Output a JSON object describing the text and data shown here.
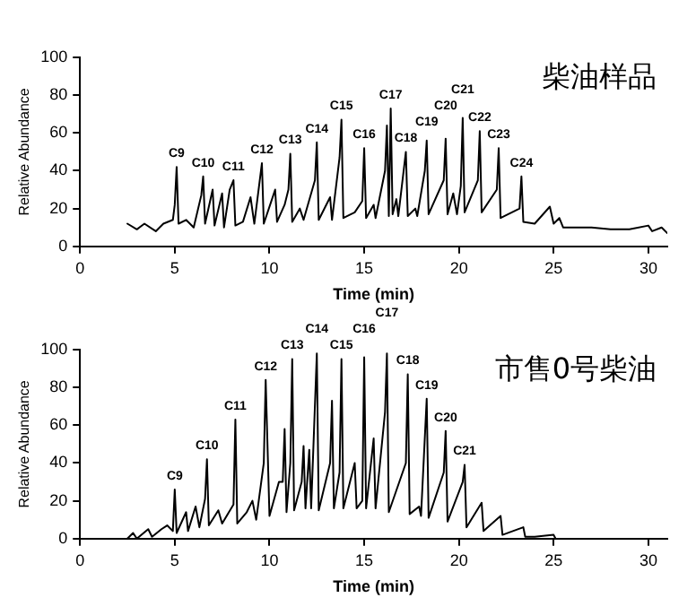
{
  "chart_data": [
    {
      "type": "line",
      "title": "柴油样品",
      "xlabel": "Time (min)",
      "ylabel": "Relative Abundance",
      "xlim": [
        0,
        31
      ],
      "xticks": [
        0,
        5,
        10,
        15,
        20,
        25,
        30
      ],
      "ylim": [
        0,
        100
      ],
      "yticks": [
        0,
        20,
        40,
        60,
        80,
        100
      ],
      "grid": false,
      "legend": false,
      "marker": "none",
      "series": [
        {
          "color": "#000000",
          "x": [
            2.5,
            3.0,
            3.4,
            4.0,
            4.4,
            4.9,
            5.0,
            5.1,
            5.2,
            5.6,
            6.0,
            6.4,
            6.5,
            6.6,
            7.0,
            7.1,
            7.5,
            7.6,
            7.9,
            8.1,
            8.2,
            8.6,
            9.0,
            9.2,
            9.6,
            9.7,
            10.3,
            10.4,
            10.8,
            11.0,
            11.1,
            11.2,
            11.6,
            11.8,
            12.4,
            12.5,
            12.6,
            13.2,
            13.3,
            13.7,
            13.8,
            13.9,
            14.5,
            14.9,
            15.0,
            15.1,
            15.5,
            15.6,
            16.1,
            16.2,
            16.3,
            16.4,
            16.5,
            16.7,
            16.8,
            17.2,
            17.3,
            17.7,
            17.8,
            18.2,
            18.3,
            18.4,
            19.2,
            19.3,
            19.4,
            19.7,
            19.9,
            20.1,
            20.2,
            20.3,
            21.0,
            21.1,
            21.2,
            22.0,
            22.1,
            22.2,
            23.2,
            23.3,
            23.4,
            24.0,
            24.8,
            25.0,
            25.3,
            25.5,
            27,
            28,
            29,
            30.0,
            30.2,
            30.7,
            31
          ],
          "values": [
            12,
            9,
            12,
            8,
            12,
            14,
            22,
            42,
            12,
            14,
            10,
            27,
            37,
            12,
            30,
            11,
            28,
            10,
            30,
            35,
            11,
            13,
            26,
            12,
            44,
            12,
            30,
            13,
            22,
            30,
            49,
            13,
            20,
            14,
            35,
            55,
            14,
            26,
            14,
            47,
            67,
            15,
            18,
            24,
            52,
            15,
            22,
            15,
            40,
            64,
            16,
            73,
            17,
            25,
            16,
            50,
            16,
            20,
            16,
            40,
            56,
            17,
            35,
            57,
            17,
            28,
            17,
            32,
            68,
            18,
            35,
            61,
            18,
            30,
            52,
            15,
            20,
            37,
            13,
            12,
            21,
            12,
            15,
            10,
            10,
            9,
            9,
            11,
            8,
            10,
            7
          ]
        }
      ],
      "annotations": [
        {
          "text": "C9",
          "x": 5.1,
          "y": 42
        },
        {
          "text": "C10",
          "x": 6.5,
          "y": 37
        },
        {
          "text": "C11",
          "x": 8.1,
          "y": 35
        },
        {
          "text": "C12",
          "x": 9.6,
          "y": 44
        },
        {
          "text": "C13",
          "x": 11.1,
          "y": 49
        },
        {
          "text": "C14",
          "x": 12.5,
          "y": 55
        },
        {
          "text": "C15",
          "x": 13.8,
          "y": 67
        },
        {
          "text": "C16",
          "x": 15.0,
          "y": 52
        },
        {
          "text": "C17",
          "x": 16.4,
          "y": 73
        },
        {
          "text": "C18",
          "x": 17.2,
          "y": 50
        },
        {
          "text": "C19",
          "x": 18.3,
          "y": 56
        },
        {
          "text": "C20",
          "x": 19.3,
          "y": 57
        },
        {
          "text": "C21",
          "x": 20.2,
          "y": 68
        },
        {
          "text": "C22",
          "x": 21.1,
          "y": 61
        },
        {
          "text": "C23",
          "x": 22.1,
          "y": 52
        },
        {
          "text": "C24",
          "x": 23.3,
          "y": 37
        }
      ]
    },
    {
      "type": "line",
      "title": "市售0号柴油",
      "xlabel": "Time (min)",
      "ylabel": "Relative Abundance",
      "xlim": [
        0,
        31
      ],
      "xticks": [
        0,
        5,
        10,
        15,
        20,
        25,
        30
      ],
      "ylim": [
        0,
        100
      ],
      "yticks": [
        0,
        20,
        40,
        60,
        80,
        100
      ],
      "grid": false,
      "legend": false,
      "marker": "none",
      "series": [
        {
          "color": "#000000",
          "x": [
            2.5,
            2.8,
            3.0,
            3.6,
            3.8,
            4.3,
            4.6,
            4.9,
            5.0,
            5.1,
            5.6,
            5.7,
            6.1,
            6.3,
            6.6,
            6.7,
            6.8,
            7.3,
            7.5,
            8.1,
            8.2,
            8.3,
            8.8,
            9.1,
            9.3,
            9.7,
            9.8,
            9.9,
            10.0,
            10.5,
            10.7,
            10.8,
            10.9,
            11.1,
            11.2,
            11.3,
            11.7,
            11.8,
            11.9,
            12.1,
            12.2,
            12.5,
            12.6,
            13.2,
            13.3,
            13.4,
            13.7,
            13.8,
            13.9,
            14.5,
            14.6,
            14.9,
            15.0,
            15.1,
            15.5,
            15.6,
            16.1,
            16.2,
            16.3,
            17.2,
            17.3,
            17.4,
            17.9,
            18.0,
            18.3,
            18.4,
            19.2,
            19.3,
            19.4,
            20.2,
            20.3,
            20.4,
            21.2,
            21.3,
            22.2,
            22.3,
            23.4,
            23.5,
            24.0,
            25.0,
            25.1
          ],
          "values": [
            0,
            3,
            0,
            5,
            1,
            5,
            7,
            4,
            26,
            3,
            14,
            4,
            17,
            6,
            21,
            42,
            7,
            15,
            8,
            18,
            63,
            8,
            14,
            20,
            10,
            40,
            84,
            48,
            12,
            30,
            30,
            58,
            14,
            40,
            95,
            15,
            30,
            49,
            16,
            47,
            16,
            98,
            15,
            40,
            73,
            16,
            35,
            95,
            16,
            40,
            16,
            20,
            96,
            16,
            53,
            16,
            67,
            98,
            14,
            40,
            87,
            13,
            17,
            12,
            74,
            11,
            35,
            57,
            9,
            30,
            39,
            6,
            19,
            4,
            12,
            2,
            6,
            1,
            1,
            2,
            0
          ]
        }
      ],
      "annotations": [
        {
          "text": "C9",
          "x": 5.0,
          "y": 26
        },
        {
          "text": "C10",
          "x": 6.7,
          "y": 42
        },
        {
          "text": "C11",
          "x": 8.2,
          "y": 63
        },
        {
          "text": "C12",
          "x": 9.8,
          "y": 84
        },
        {
          "text": "C13",
          "x": 11.2,
          "y": 95
        },
        {
          "text": "C14",
          "x": 12.5,
          "y": 98
        },
        {
          "text": "C15",
          "x": 13.8,
          "y": 95
        },
        {
          "text": "C16",
          "x": 15.0,
          "y": 96
        },
        {
          "text": "C17",
          "x": 16.2,
          "y": 98
        },
        {
          "text": "C18",
          "x": 17.3,
          "y": 87
        },
        {
          "text": "C19",
          "x": 18.3,
          "y": 74
        },
        {
          "text": "C20",
          "x": 19.3,
          "y": 57
        },
        {
          "text": "C21",
          "x": 20.3,
          "y": 39
        }
      ]
    }
  ]
}
